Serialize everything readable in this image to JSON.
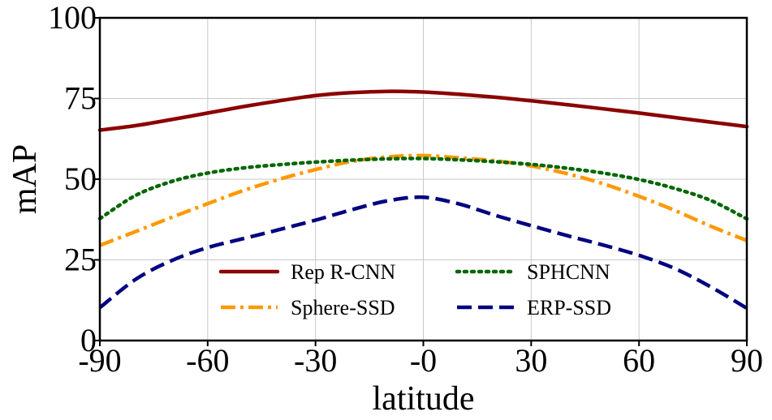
{
  "chart_data": {
    "type": "line",
    "title": "",
    "xlabel": "latitude",
    "ylabel": "mAP",
    "xlim": [
      -90,
      90
    ],
    "ylim": [
      0,
      100
    ],
    "x_ticks": [
      -90,
      -60,
      -30,
      0,
      30,
      60,
      90
    ],
    "x_tick_labels": [
      "-90",
      "-60",
      "-30",
      "-0",
      "30",
      "60",
      "90"
    ],
    "y_ticks": [
      0,
      25,
      50,
      75,
      100
    ],
    "y_tick_labels": [
      "0",
      "25",
      "50",
      "75",
      "100"
    ],
    "grid": true,
    "legend_position": "bottom-center",
    "series": [
      {
        "name": "Rep R-CNN",
        "color": "#8B0000",
        "style": "solid",
        "x": [
          -90,
          -80,
          -70,
          -60,
          -50,
          -40,
          -30,
          -20,
          -10,
          0,
          10,
          20,
          30,
          40,
          50,
          60,
          70,
          80,
          90
        ],
        "y": [
          65.2,
          66.6,
          68.5,
          70.5,
          72.5,
          74.3,
          75.9,
          76.8,
          77.2,
          77.0,
          76.3,
          75.4,
          74.3,
          73.1,
          71.8,
          70.5,
          69.1,
          67.7,
          66.3
        ]
      },
      {
        "name": "Sphere-SSD",
        "color": "#FF9900",
        "style": "dashdot",
        "x": [
          -90,
          -80,
          -70,
          -60,
          -50,
          -40,
          -30,
          -20,
          -10,
          0,
          10,
          20,
          30,
          40,
          50,
          60,
          70,
          80,
          90
        ],
        "y": [
          29.5,
          33.8,
          38.2,
          42.4,
          46.5,
          50.0,
          53.0,
          55.5,
          56.9,
          57.3,
          56.6,
          55.7,
          54.1,
          51.7,
          48.6,
          44.7,
          40.3,
          35.4,
          31.0
        ]
      },
      {
        "name": "SPHCNN",
        "color": "#006600",
        "style": "dotted",
        "x": [
          -90,
          -80,
          -70,
          -60,
          -50,
          -40,
          -30,
          -20,
          -10,
          0,
          10,
          20,
          30,
          40,
          50,
          60,
          70,
          80,
          90
        ],
        "y": [
          37.8,
          45.0,
          49.3,
          51.9,
          53.5,
          54.5,
          55.3,
          55.9,
          56.3,
          56.4,
          56.0,
          55.4,
          54.6,
          53.4,
          51.9,
          49.9,
          47.1,
          43.4,
          37.7
        ]
      },
      {
        "name": "ERP-SSD",
        "color": "#000080",
        "style": "dashed",
        "x": [
          -90,
          -80,
          -70,
          -60,
          -50,
          -40,
          -30,
          -20,
          -10,
          0,
          10,
          20,
          30,
          40,
          50,
          60,
          70,
          80,
          90
        ],
        "y": [
          10.2,
          19.0,
          24.8,
          28.8,
          31.6,
          34.4,
          37.3,
          40.5,
          43.3,
          44.4,
          42.3,
          38.8,
          35.6,
          32.5,
          29.6,
          26.4,
          22.3,
          16.6,
          10.0
        ]
      }
    ]
  }
}
